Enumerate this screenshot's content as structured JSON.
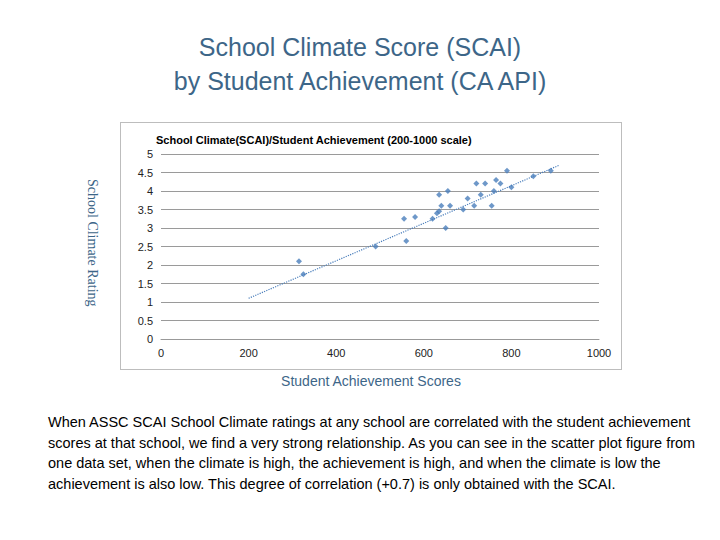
{
  "heading": [
    "School Climate Score (SCAI)",
    "by Student Achievement (CA API)"
  ],
  "chart_data": {
    "type": "scatter",
    "title": "School Climate(SCAI)/Student Achievement (200-1000 scale)",
    "x_label": "Student Achievement Scores",
    "y_label": "School Climate Rating",
    "xlim": [
      0,
      1000
    ],
    "xticks": [
      0,
      200,
      400,
      600,
      800,
      1000
    ],
    "ylim": [
      0,
      5
    ],
    "yticks": [
      0,
      0.5,
      1,
      1.5,
      2,
      2.5,
      3,
      3.5,
      4,
      4.5,
      5
    ],
    "grid": true,
    "series": [
      {
        "type": "scatter",
        "marker": "diamond",
        "color": "#4a7ebb",
        "x": [
          315,
          325,
          490,
          555,
          560,
          580,
          620,
          630,
          635,
          635,
          640,
          650,
          655,
          660,
          690,
          700,
          715,
          720,
          730,
          740,
          755,
          760,
          765,
          775,
          790,
          800,
          850,
          890
        ],
        "values": [
          2.1,
          1.75,
          2.5,
          3.25,
          2.65,
          3.3,
          3.25,
          3.4,
          3.45,
          3.9,
          3.6,
          3.0,
          4.0,
          3.6,
          3.5,
          3.8,
          3.6,
          4.2,
          3.9,
          4.2,
          3.6,
          4.0,
          4.3,
          4.2,
          4.55,
          4.1,
          4.4,
          4.55
        ]
      },
      {
        "type": "line",
        "line_style": "dotted",
        "color": "#4a7ebb",
        "x": [
          200,
          910
        ],
        "values": [
          1.1,
          4.7
        ]
      }
    ]
  },
  "caption": "When ASSC SCAI School Climate ratings at any school are correlated with the student achievement scores at that school, we find a very strong relationship. As you can see in the scatter plot figure from one data set, when the climate is high, the achievement is high, and when the climate is low the achievement is also low. This degree of correlation (+0.7) is only obtained with the SCAI."
}
